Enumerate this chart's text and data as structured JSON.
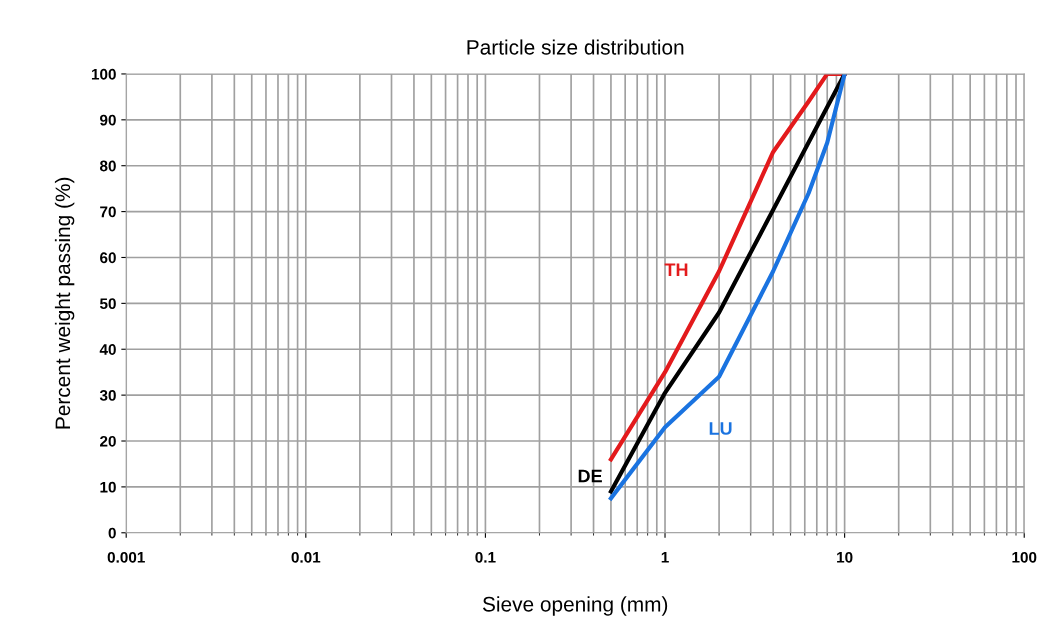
{
  "chart_data": {
    "type": "line",
    "title": "Particle size distribution",
    "xlabel": "Sieve opening (mm)",
    "ylabel": "Percent weight passing (%)",
    "log": "x",
    "xlim": [
      0.001,
      100
    ],
    "xticks": [
      0.001,
      0.01,
      0.1,
      1,
      10,
      100
    ],
    "ylim": [
      0,
      100
    ],
    "yticks": [
      0,
      10,
      20,
      30,
      40,
      50,
      60,
      70,
      80,
      90,
      100
    ],
    "grid": true,
    "legend": false,
    "marker": "none",
    "line_style": "solid",
    "series": [
      {
        "name": "TH",
        "color": "#e31a1c",
        "x": [
          0.5,
          1,
          2,
          4,
          6.3,
          8,
          10
        ],
        "values": [
          16,
          35,
          57,
          83,
          94,
          100,
          100
        ]
      },
      {
        "name": "DE",
        "color": "#000000",
        "x": [
          0.5,
          1,
          2,
          10
        ],
        "values": [
          9,
          30.5,
          48,
          100
        ]
      },
      {
        "name": "LU",
        "color": "#1a73e0",
        "x": [
          0.5,
          1,
          2,
          4,
          6.3,
          8,
          10
        ],
        "values": [
          7.5,
          23,
          34,
          57,
          74,
          85,
          100
        ]
      }
    ]
  }
}
